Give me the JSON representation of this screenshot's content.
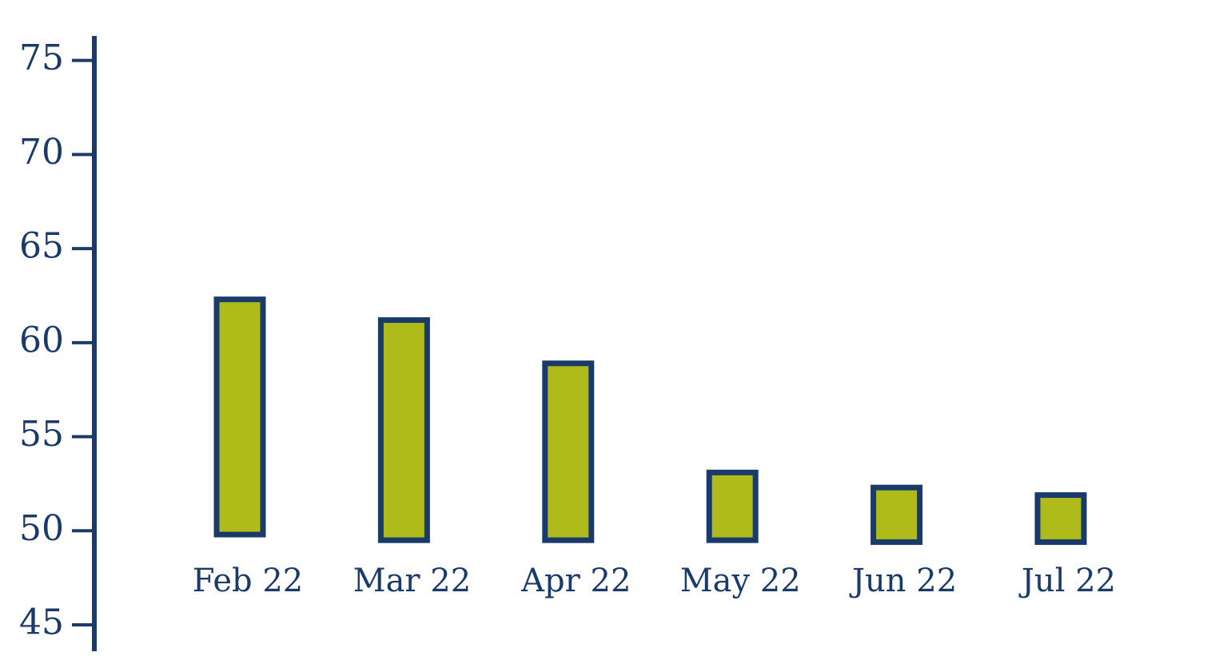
{
  "chart_data": {
    "type": "floating-bar",
    "categories": [
      "Feb 22",
      "Mar 22",
      "Apr 22",
      "May 22",
      "Jun 22",
      "Jul 22"
    ],
    "values": [
      62.3,
      61.2,
      58.9,
      53.1,
      52.3,
      51.9
    ],
    "bases": [
      49.8,
      49.5,
      49.5,
      49.5,
      49.4,
      49.4
    ],
    "color": "#afbb1a",
    "edge_color": "#1a3a6b",
    "ylim": [
      43.6,
      76.3
    ],
    "yticks": [
      45,
      50,
      55,
      60,
      65,
      70,
      75
    ]
  }
}
